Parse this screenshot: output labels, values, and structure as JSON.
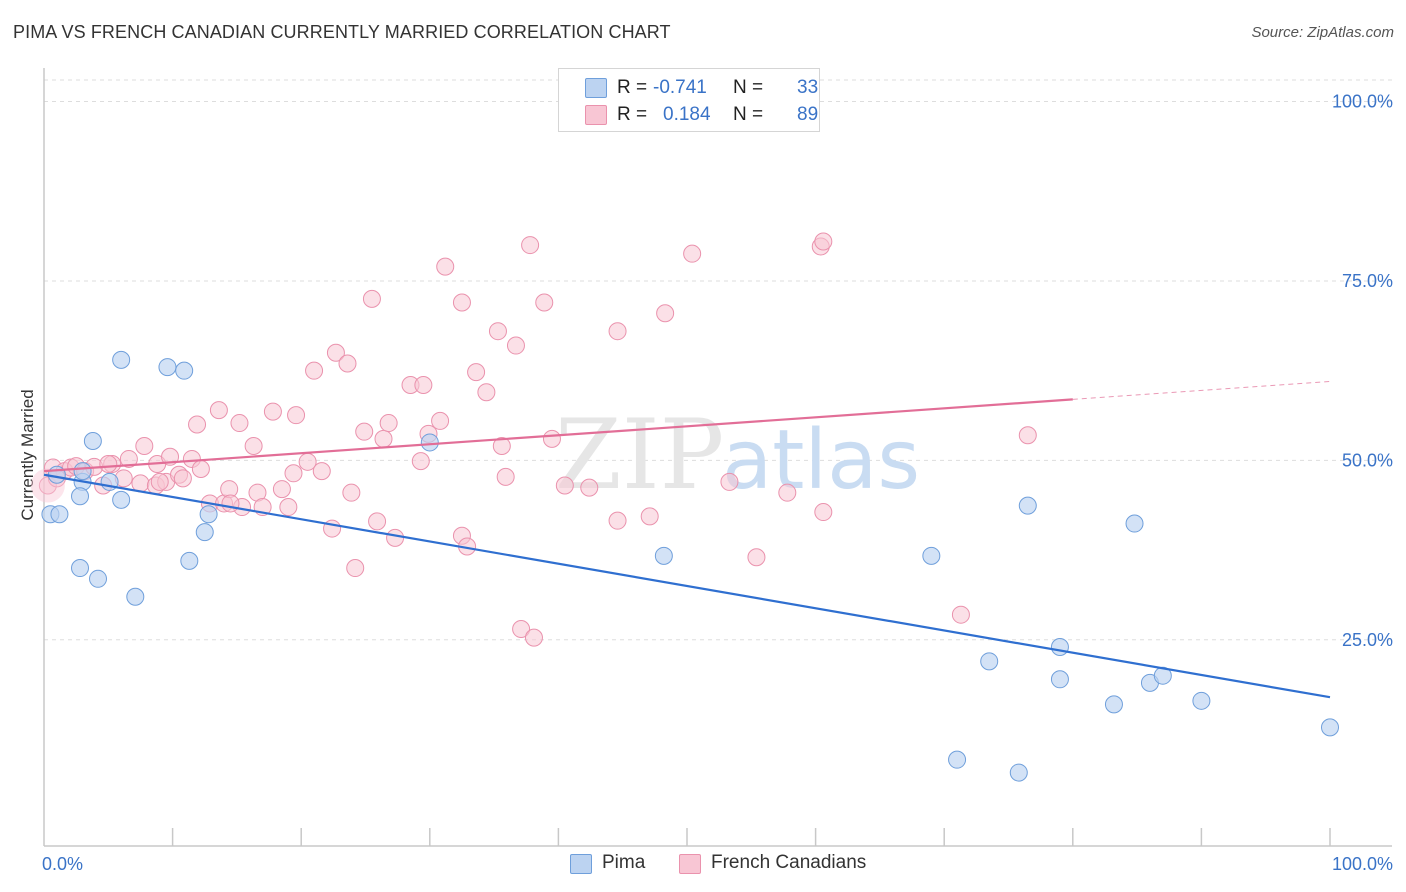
{
  "title": "PIMA VS FRENCH CANADIAN CURRENTLY MARRIED CORRELATION CHART",
  "source": "Source: ZipAtlas.com",
  "watermark": {
    "zip": "ZIP",
    "atlas": "atlas"
  },
  "legend": {
    "r_label": "R =",
    "n_label": "N =",
    "pima": {
      "r": "-0.741",
      "n": "33"
    },
    "french": {
      "r": "0.184",
      "n": "89"
    }
  },
  "colors": {
    "pima_fill": "#bcd3f1",
    "pima_stroke": "#6f9fdb",
    "pima_line": "#2f6fd0",
    "french_fill": "#f8c6d4",
    "french_stroke": "#ea92ad",
    "french_line": "#e26e97",
    "axis_text": "#3a73c7",
    "grid": "#dddddd"
  },
  "chart_data": {
    "type": "scatter",
    "title": "PIMA VS FRENCH CANADIAN CURRENTLY MARRIED CORRELATION CHART",
    "xlabel": "",
    "ylabel": "Currently Married",
    "xlim": [
      0,
      100
    ],
    "ylim": [
      -1.5,
      103
    ],
    "x_tick_labels": [
      "0.0%",
      "100.0%"
    ],
    "y_ticks": [
      25,
      50,
      75,
      100
    ],
    "y_tick_labels": [
      "25.0%",
      "50.0%",
      "75.0%",
      "100.0%"
    ],
    "series": [
      {
        "name": "Pima",
        "r": -0.741,
        "n": 33,
        "points": [
          [
            0.5,
            42.5
          ],
          [
            1.2,
            42.5
          ],
          [
            3,
            47
          ],
          [
            3,
            48.5
          ],
          [
            3.8,
            52.7
          ],
          [
            2.8,
            35
          ],
          [
            4.2,
            33.5
          ],
          [
            2.8,
            45
          ],
          [
            5.1,
            47
          ],
          [
            6,
            64
          ],
          [
            6,
            44.5
          ],
          [
            7.1,
            31
          ],
          [
            9.6,
            63
          ],
          [
            10.9,
            62.5
          ],
          [
            11.3,
            36
          ],
          [
            12.5,
            40
          ],
          [
            12.8,
            42.5
          ],
          [
            30,
            52.5
          ],
          [
            48.2,
            36.7
          ],
          [
            69,
            36.7
          ],
          [
            73.5,
            22
          ],
          [
            75.8,
            6.5
          ],
          [
            76.5,
            43.7
          ],
          [
            79,
            24
          ],
          [
            79,
            19.5
          ],
          [
            83.2,
            16
          ],
          [
            84.8,
            41.2
          ],
          [
            86,
            19
          ],
          [
            87,
            20
          ],
          [
            90,
            16.5
          ],
          [
            71,
            8.3
          ],
          [
            100,
            12.8
          ],
          [
            1,
            48
          ]
        ],
        "trend": {
          "x1": 0,
          "y1": 48,
          "x2": 100,
          "y2": 17
        }
      },
      {
        "name": "French Canadians",
        "r": 0.184,
        "n": 89,
        "points": [
          [
            0.3,
            46.5
          ],
          [
            0.7,
            49
          ],
          [
            1.6,
            48.5
          ],
          [
            2.1,
            49
          ],
          [
            2.5,
            49.2
          ],
          [
            3.2,
            48.5
          ],
          [
            3.9,
            49.1
          ],
          [
            4.6,
            46.5
          ],
          [
            5.3,
            49.5
          ],
          [
            6.2,
            47.5
          ],
          [
            6.6,
            50.2
          ],
          [
            7.5,
            46.8
          ],
          [
            7.8,
            52
          ],
          [
            8.7,
            46.5
          ],
          [
            8.8,
            49.5
          ],
          [
            9.5,
            47
          ],
          [
            9.8,
            50.5
          ],
          [
            10.5,
            48
          ],
          [
            10.8,
            47.5
          ],
          [
            11.5,
            50.2
          ],
          [
            11.9,
            55
          ],
          [
            12.2,
            48.8
          ],
          [
            12.9,
            44
          ],
          [
            13.6,
            57
          ],
          [
            14,
            44
          ],
          [
            14.4,
            46
          ],
          [
            15.2,
            55.2
          ],
          [
            15.4,
            43.5
          ],
          [
            16.3,
            52
          ],
          [
            16.6,
            45.5
          ],
          [
            17,
            43.5
          ],
          [
            17.8,
            56.8
          ],
          [
            18.5,
            46
          ],
          [
            19,
            43.5
          ],
          [
            19.4,
            48.2
          ],
          [
            19.6,
            56.3
          ],
          [
            20.5,
            49.8
          ],
          [
            21,
            62.5
          ],
          [
            21.6,
            48.5
          ],
          [
            22.4,
            40.5
          ],
          [
            22.7,
            65
          ],
          [
            23.6,
            63.5
          ],
          [
            23.9,
            45.5
          ],
          [
            24.2,
            35
          ],
          [
            24.9,
            54
          ],
          [
            25.5,
            72.5
          ],
          [
            25.9,
            41.5
          ],
          [
            26.4,
            53
          ],
          [
            26.8,
            55.2
          ],
          [
            27.3,
            39.2
          ],
          [
            28.5,
            60.5
          ],
          [
            29.5,
            60.5
          ],
          [
            29.9,
            53.7
          ],
          [
            29.3,
            49.9
          ],
          [
            30.8,
            55.5
          ],
          [
            31.2,
            77
          ],
          [
            32.5,
            72
          ],
          [
            32.5,
            39.5
          ],
          [
            32.9,
            38
          ],
          [
            33.6,
            62.3
          ],
          [
            34.4,
            59.5
          ],
          [
            35.3,
            68
          ],
          [
            35.6,
            52
          ],
          [
            35.9,
            47.7
          ],
          [
            36.7,
            66
          ],
          [
            37.1,
            26.5
          ],
          [
            37.8,
            80
          ],
          [
            38.1,
            25.3
          ],
          [
            38.9,
            72
          ],
          [
            39.5,
            53
          ],
          [
            40.5,
            46.5
          ],
          [
            42.4,
            46.2
          ],
          [
            44.6,
            41.6
          ],
          [
            44.6,
            68
          ],
          [
            47.1,
            42.2
          ],
          [
            48.3,
            70.5
          ],
          [
            50.4,
            78.8
          ],
          [
            53.3,
            47
          ],
          [
            55.4,
            36.5
          ],
          [
            57.8,
            45.5
          ],
          [
            60.4,
            79.8
          ],
          [
            60.6,
            42.8
          ],
          [
            60.6,
            80.5
          ],
          [
            71.3,
            28.5
          ],
          [
            76.5,
            53.5
          ],
          [
            5,
            49.5
          ],
          [
            9,
            47
          ],
          [
            14.5,
            44
          ],
          [
            1,
            47.5
          ]
        ],
        "trend": {
          "x1": 0,
          "y1": 48.5,
          "x2": 80,
          "y2": 58.5
        },
        "trend_dashed": {
          "x1": 80,
          "y1": 58.5,
          "x2": 100,
          "y2": 61
        }
      }
    ]
  }
}
